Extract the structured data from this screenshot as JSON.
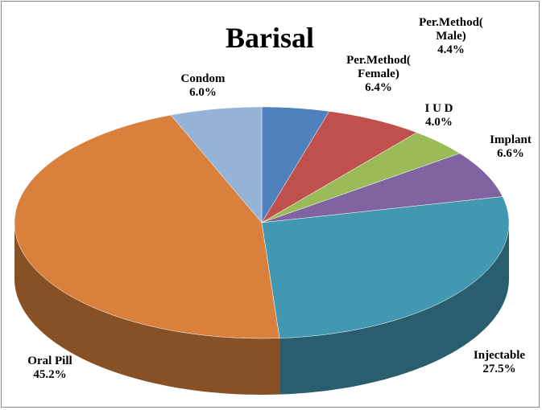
{
  "chart_data": {
    "type": "pie3d",
    "title": "Barisal",
    "categories": [
      "Per.Method( Male)",
      "Per.Method( Female)",
      "I U D",
      "Implant",
      "Injectable",
      "Oral Pill",
      "Condom"
    ],
    "values": [
      4.4,
      6.4,
      4.0,
      6.6,
      27.5,
      45.2,
      6.0
    ],
    "value_labels": [
      "4.4%",
      "6.4%",
      "4.0%",
      "6.6%",
      "27.5%",
      "45.2%",
      "6.0%"
    ],
    "colors": [
      "#4f81bd",
      "#c0504d",
      "#9bbb59",
      "#8064a2",
      "#4198b0",
      "#d9813c",
      "#95b3d7"
    ]
  }
}
